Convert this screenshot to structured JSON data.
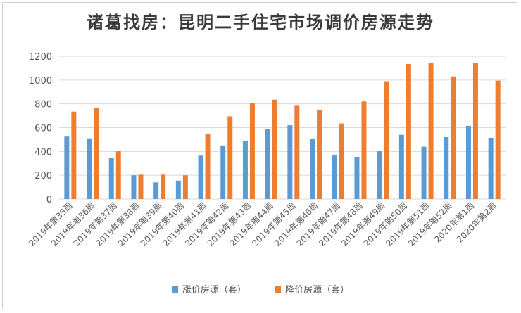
{
  "chart_data": {
    "type": "bar",
    "title": "诸葛找房：昆明二手住宅市场调价房源走势",
    "xlabel": "",
    "ylabel": "",
    "ylim": [
      0,
      1200
    ],
    "yticks": [
      0,
      200,
      400,
      600,
      800,
      1000,
      1200
    ],
    "grid": true,
    "legend_position": "bottom",
    "categories": [
      "2019年第35周",
      "2019年第36周",
      "2019年第37周",
      "2019年第38周",
      "2019年第39周",
      "2019年第40周",
      "2019年第41周",
      "2019年第42周",
      "2019年第43周",
      "2019年第44周",
      "2019年第45周",
      "2019年第46周",
      "2019年第47周",
      "2019年第48周",
      "2019年第49周",
      "2019年第50周",
      "2019年第51周",
      "2019年第52周",
      "2020年第1周",
      "2020年第2周"
    ],
    "series": [
      {
        "name": "涨价房源（套）",
        "color": "#5B9BD5",
        "values": [
          525,
          510,
          345,
          200,
          140,
          155,
          365,
          450,
          485,
          590,
          620,
          505,
          370,
          355,
          405,
          540,
          440,
          520,
          615,
          515
        ]
      },
      {
        "name": "降价房源（套）",
        "color": "#ED7D31",
        "values": [
          735,
          765,
          405,
          205,
          205,
          200,
          550,
          695,
          810,
          835,
          790,
          750,
          635,
          820,
          990,
          1135,
          1145,
          1030,
          1145,
          995
        ]
      }
    ]
  }
}
